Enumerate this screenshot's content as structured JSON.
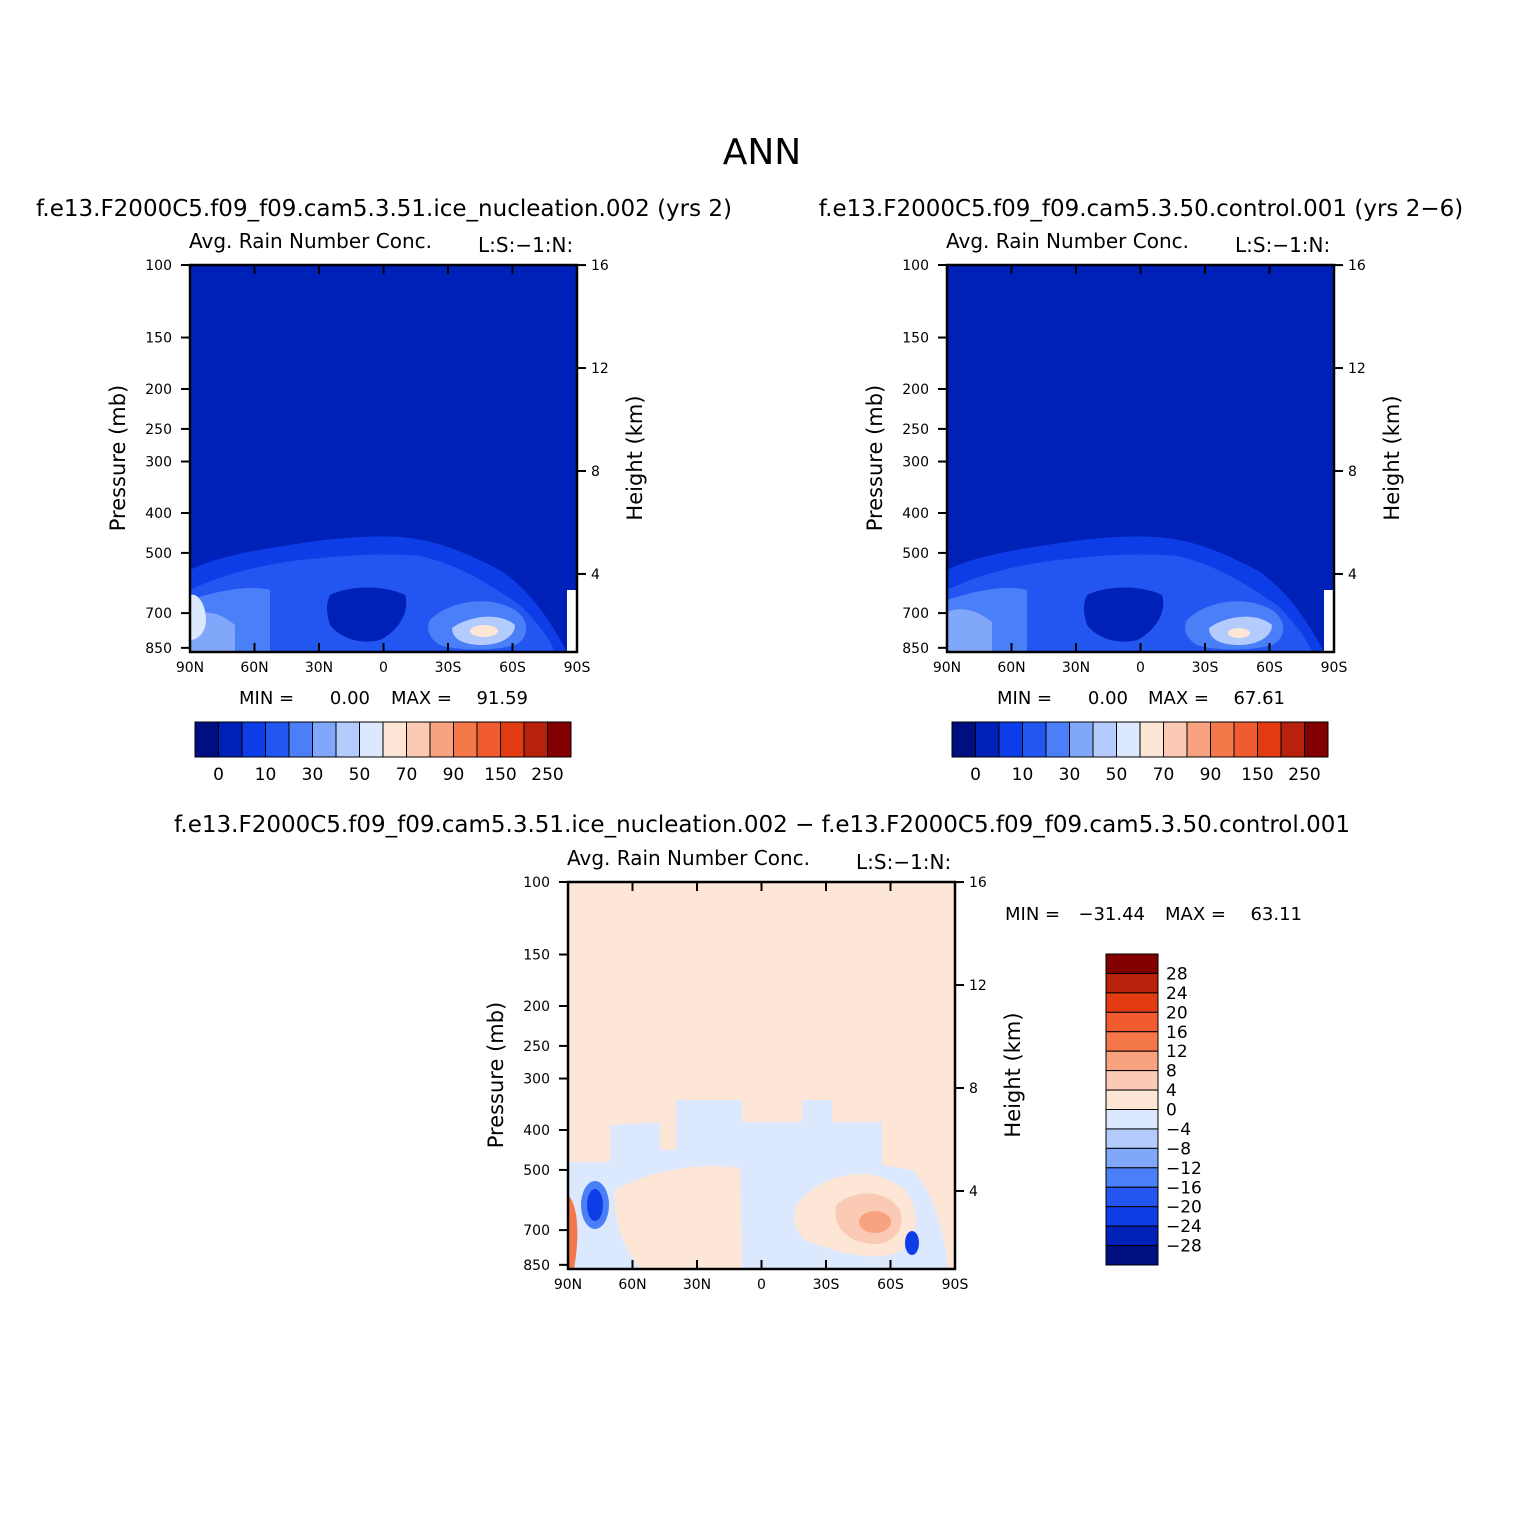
{
  "figure": {
    "title": "ANN"
  },
  "colors": {
    "abs_scale": [
      "#000f80",
      "#0021b8",
      "#0d3de6",
      "#2356f0",
      "#4b7ff7",
      "#81a7fa",
      "#b3cbfd",
      "#dbe8fd",
      "#fde6d6",
      "#fbcab5",
      "#f8a27f",
      "#f5784b",
      "#f15b2f",
      "#e23b12",
      "#b8220c",
      "#820000"
    ],
    "diff_scale": [
      "#820000",
      "#b8220c",
      "#e23b12",
      "#f15b2f",
      "#f5784b",
      "#f8a27f",
      "#fbcab5",
      "#fde6d6",
      "#dbe8fd",
      "#b3cbfd",
      "#81a7fa",
      "#4b7ff7",
      "#2356f0",
      "#0d3de6",
      "#0021b8",
      "#000f80"
    ]
  },
  "panels": [
    {
      "case": "f.e13.F2000C5.f09_f09.cam5.3.51.ice_nucleation.002 (yrs 2)",
      "variable": "Avg. Rain Number Conc.",
      "flags": "L:S:−1:N:",
      "min_label": "MIN =",
      "min_value": "0.00",
      "max_label": "MAX =",
      "max_value": "91.59"
    },
    {
      "case": "f.e13.F2000C5.f09_f09.cam5.3.50.control.001 (yrs 2−6)",
      "variable": "Avg. Rain Number Conc.",
      "flags": "L:S:−1:N:",
      "min_label": "MIN =",
      "min_value": "0.00",
      "max_label": "MAX =",
      "max_value": "67.61"
    },
    {
      "case": "f.e13.F2000C5.f09_f09.cam5.3.51.ice_nucleation.002 − f.e13.F2000C5.f09_f09.cam5.3.50.control.001",
      "variable": "Avg. Rain Number Conc.",
      "flags": "L:S:−1:N:",
      "min_label": "MIN =",
      "min_value": "−31.44",
      "max_label": "MAX =",
      "max_value": "63.11"
    }
  ],
  "chart_data": [
    {
      "type": "heatmap",
      "title": "Avg. Rain Number Conc.",
      "xlabel": "",
      "ylabel": "Pressure (mb)",
      "y2label": "Height (km)",
      "x_ticks": [
        "90N",
        "60N",
        "30N",
        "0",
        "30S",
        "60S",
        "90S"
      ],
      "y_ticks": [
        "100",
        "150",
        "200",
        "250",
        "300",
        "400",
        "500",
        "700",
        "850"
      ],
      "y2_ticks": [
        "16",
        "12",
        "8",
        "4"
      ],
      "colorbar_labels": [
        "0",
        "10",
        "30",
        "50",
        "70",
        "90",
        "150",
        "250"
      ],
      "min": 0.0,
      "max": 91.59
    },
    {
      "type": "heatmap",
      "title": "Avg. Rain Number Conc.",
      "xlabel": "",
      "ylabel": "Pressure (mb)",
      "y2label": "Height (km)",
      "x_ticks": [
        "90N",
        "60N",
        "30N",
        "0",
        "30S",
        "60S",
        "90S"
      ],
      "y_ticks": [
        "100",
        "150",
        "200",
        "250",
        "300",
        "400",
        "500",
        "700",
        "850"
      ],
      "y2_ticks": [
        "16",
        "12",
        "8",
        "4"
      ],
      "colorbar_labels": [
        "0",
        "10",
        "30",
        "50",
        "70",
        "90",
        "150",
        "250"
      ],
      "min": 0.0,
      "max": 67.61
    },
    {
      "type": "heatmap",
      "title": "Avg. Rain Number Conc.",
      "xlabel": "",
      "ylabel": "Pressure (mb)",
      "y2label": "Height (km)",
      "x_ticks": [
        "90N",
        "60N",
        "30N",
        "0",
        "30S",
        "60S",
        "90S"
      ],
      "y_ticks": [
        "100",
        "150",
        "200",
        "250",
        "300",
        "400",
        "500",
        "700",
        "850"
      ],
      "y2_ticks": [
        "16",
        "12",
        "8",
        "4"
      ],
      "colorbar_labels": [
        "28",
        "24",
        "20",
        "16",
        "12",
        "8",
        "4",
        "0",
        "−4",
        "−8",
        "−12",
        "−16",
        "−20",
        "−24",
        "−28"
      ],
      "min": -31.44,
      "max": 63.11
    }
  ]
}
